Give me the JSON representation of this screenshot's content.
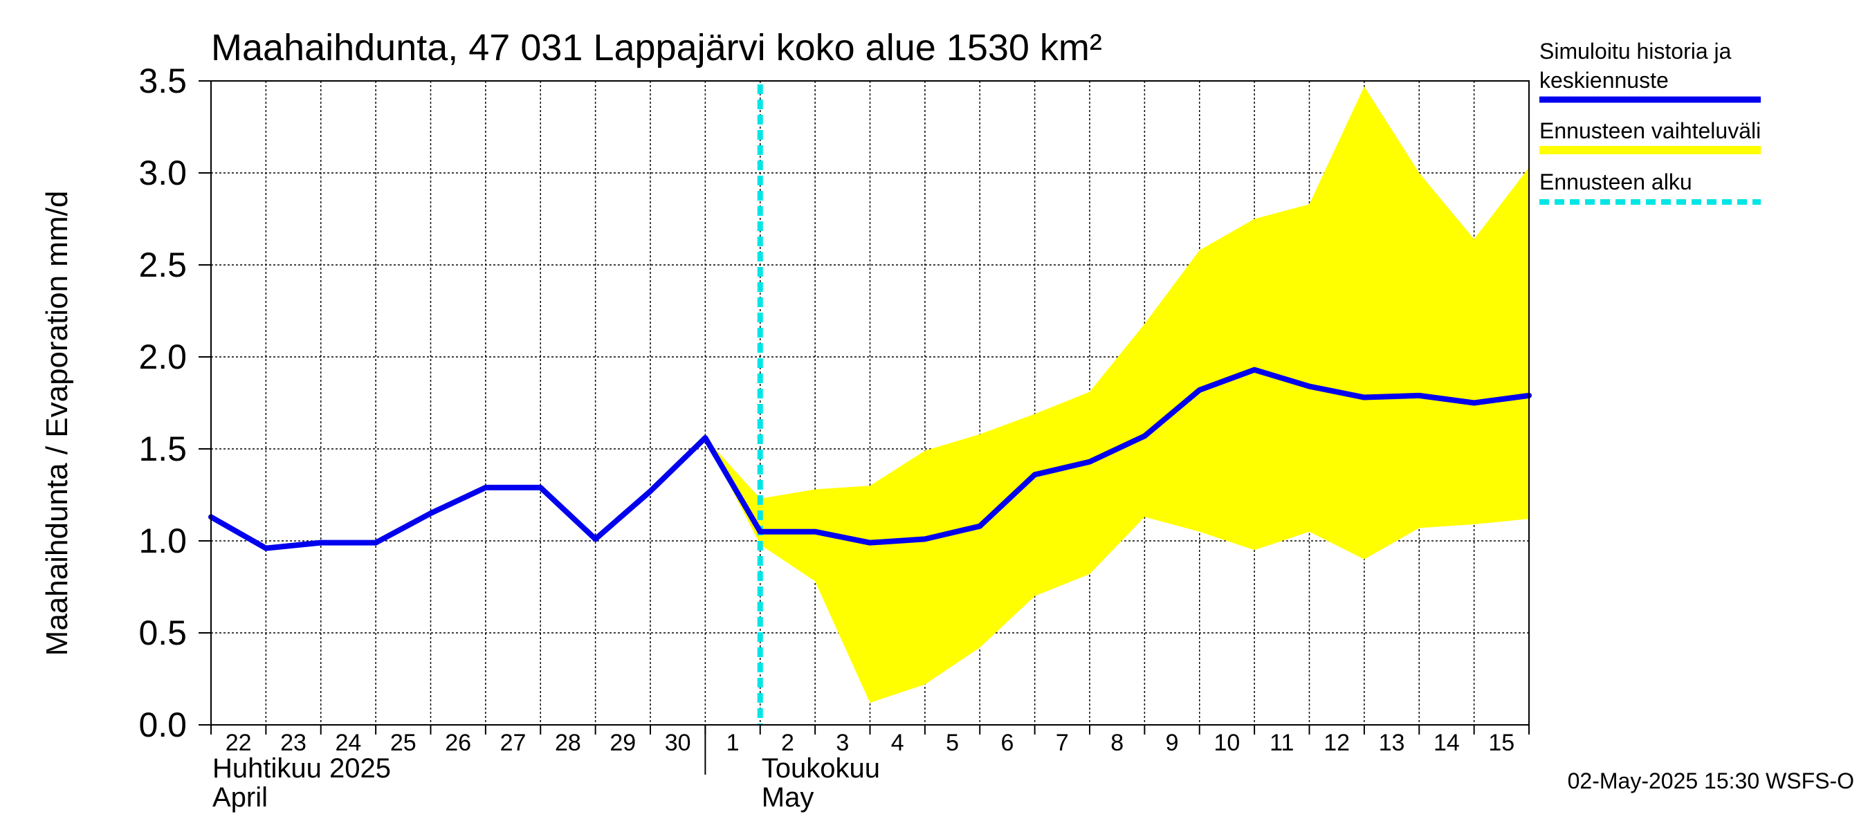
{
  "chart_data": {
    "type": "line",
    "title": "Maahaihdunta, 47 031 Lappajärvi koko alue 1530 km²",
    "ylabel": "Maahaihdunta / Evaporation   mm/d",
    "ylim": [
      0,
      3.5
    ],
    "yticks": [
      "0.0",
      "0.5",
      "1.0",
      "1.5",
      "2.0",
      "2.5",
      "3.0",
      "3.5"
    ],
    "xlim": [
      "2025-04-22",
      "2025-05-16"
    ],
    "x_tick_labels": [
      "22",
      "23",
      "24",
      "25",
      "26",
      "27",
      "28",
      "29",
      "30",
      "1",
      "2",
      "3",
      "4",
      "5",
      "6",
      "7",
      "8",
      "9",
      "10",
      "11",
      "12",
      "13",
      "14",
      "15"
    ],
    "month_labels": [
      {
        "fi": "Huhtikuu  2025",
        "en": "April"
      },
      {
        "fi": "Toukokuu",
        "en": "May"
      }
    ],
    "grid": true,
    "forecast_start": "2025-05-02",
    "series": [
      {
        "name": "Simuloitu historia ja keskiennuste",
        "color": "#0000ee",
        "x": [
          "2025-04-22",
          "2025-04-23",
          "2025-04-24",
          "2025-04-25",
          "2025-04-26",
          "2025-04-27",
          "2025-04-28",
          "2025-04-29",
          "2025-04-30",
          "2025-05-01",
          "2025-05-02",
          "2025-05-03",
          "2025-05-04",
          "2025-05-05",
          "2025-05-06",
          "2025-05-07",
          "2025-05-08",
          "2025-05-09",
          "2025-05-10",
          "2025-05-11",
          "2025-05-12",
          "2025-05-13",
          "2025-05-14",
          "2025-05-15",
          "2025-05-16"
        ],
        "values": [
          1.13,
          0.96,
          0.99,
          0.99,
          1.15,
          1.29,
          1.29,
          1.01,
          1.27,
          1.56,
          1.05,
          1.05,
          0.99,
          1.01,
          1.08,
          1.36,
          1.43,
          1.57,
          1.82,
          1.93,
          1.84,
          1.78,
          1.79,
          1.75,
          1.79
        ]
      }
    ],
    "band": {
      "name": "Ennusteen vaihteluväli",
      "color": "#ffff00",
      "x": [
        "2025-05-01",
        "2025-05-02",
        "2025-05-03",
        "2025-05-04",
        "2025-05-05",
        "2025-05-06",
        "2025-05-07",
        "2025-05-08",
        "2025-05-09",
        "2025-05-10",
        "2025-05-11",
        "2025-05-12",
        "2025-05-13",
        "2025-05-14",
        "2025-05-15",
        "2025-05-16"
      ],
      "upper": [
        1.56,
        1.23,
        1.28,
        1.3,
        1.49,
        1.58,
        1.69,
        1.81,
        2.18,
        2.58,
        2.75,
        2.83,
        3.47,
        3.0,
        2.64,
        3.03
      ],
      "lower": [
        1.56,
        0.98,
        0.78,
        0.12,
        0.22,
        0.42,
        0.7,
        0.82,
        1.13,
        1.05,
        0.95,
        1.05,
        0.9,
        1.07,
        1.09,
        1.12
      ]
    },
    "legend": {
      "placement": "right",
      "items": [
        {
          "label_lines": [
            "Simuloitu historia ja",
            "keskiennuste"
          ],
          "color": "#0000ee",
          "style": "solid-thick"
        },
        {
          "label_lines": [
            "Ennusteen vaihteluväli"
          ],
          "color": "#ffff00",
          "style": "solid-thick"
        },
        {
          "label_lines": [
            "Ennusteen alku"
          ],
          "color": "#00e5e5",
          "style": "dashed"
        }
      ]
    },
    "footer": "02-May-2025 15:30 WSFS-O"
  }
}
